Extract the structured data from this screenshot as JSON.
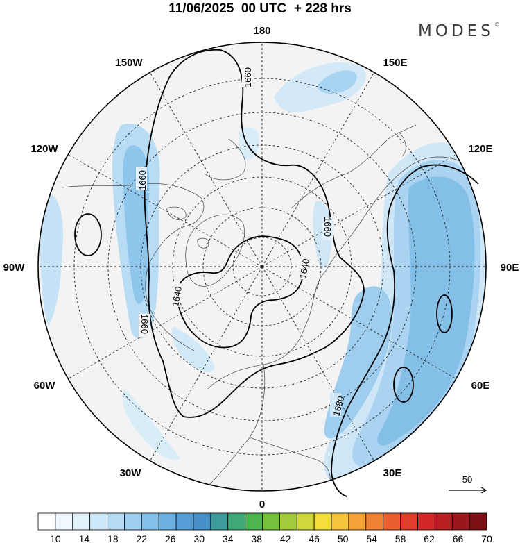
{
  "title": "11/06/2025  00 UTC  + 228 hrs",
  "brand": "MODES",
  "brand_mark": "©",
  "longitude_labels": [
    {
      "text": "180",
      "lon": 180
    },
    {
      "text": "150E",
      "lon": 150
    },
    {
      "text": "120E",
      "lon": 120
    },
    {
      "text": "90E",
      "lon": 90
    },
    {
      "text": "60E",
      "lon": 60
    },
    {
      "text": "30E",
      "lon": 30
    },
    {
      "text": "0",
      "lon": 0
    },
    {
      "text": "30W",
      "lon": -30
    },
    {
      "text": "60W",
      "lon": -60
    },
    {
      "text": "90W",
      "lon": -90
    },
    {
      "text": "120W",
      "lon": -120
    },
    {
      "text": "150W",
      "lon": -150
    }
  ],
  "contour_labels": [
    "1660",
    "1660",
    "1660",
    "1640",
    "1640",
    "1660",
    "1680"
  ],
  "wind_reference": {
    "label": "50"
  },
  "colorbar": {
    "tick_labels": [
      "10",
      "14",
      "18",
      "22",
      "26",
      "30",
      "34",
      "38",
      "42",
      "46",
      "50",
      "54",
      "58",
      "62",
      "66",
      "70"
    ],
    "colors": [
      "#ffffff",
      "#f0f8fd",
      "#e1f2fb",
      "#cde8f8",
      "#b5dcf4",
      "#9ccff0",
      "#84c1ea",
      "#6cb1e2",
      "#569fd6",
      "#4790c8",
      "#3f9c9c",
      "#3fa97a",
      "#4db44f",
      "#76c03e",
      "#a2cc3a",
      "#cfd73a",
      "#f3de3c",
      "#f5c43a",
      "#f4a437",
      "#f08233",
      "#e9602e",
      "#df3f2a",
      "#d12727",
      "#b81f22",
      "#9a181c",
      "#7c1215"
    ]
  }
}
